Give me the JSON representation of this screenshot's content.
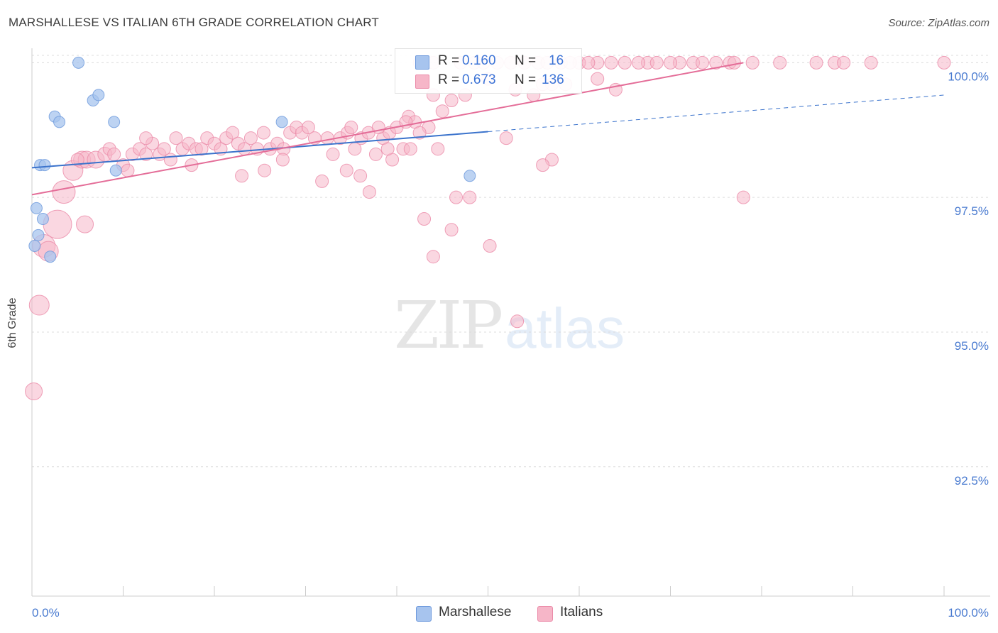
{
  "title": "MARSHALLESE VS ITALIAN 6TH GRADE CORRELATION CHART",
  "source": "Source: ZipAtlas.com",
  "watermark": {
    "zip": "ZIP",
    "atlas": "atlas"
  },
  "legend_top": {
    "rows": [
      {
        "r_label": "R = ",
        "r_value": "0.160",
        "n_label": "N = ",
        "n_value": "16",
        "color": "#a7c4ee"
      },
      {
        "r_label": "R = ",
        "r_value": "0.673",
        "n_label": "N = ",
        "n_value": "136",
        "color": "#f6b6c8"
      }
    ]
  },
  "legend_bottom": [
    {
      "label": "Marshallese",
      "color": "#a7c4ee"
    },
    {
      "label": "Italians",
      "color": "#f6b6c8"
    }
  ],
  "chart_data": {
    "type": "scatter",
    "title": "MARSHALLESE VS ITALIAN 6TH GRADE CORRELATION CHART",
    "xlabel": "",
    "ylabel": "6th Grade",
    "xlim": [
      0,
      100
    ],
    "ylim": [
      90.1,
      100.4
    ],
    "x_tick_labels": [
      "0.0%",
      "100.0%"
    ],
    "y_ticks": [
      92.5,
      95.0,
      97.5,
      100.0
    ],
    "y_tick_labels": [
      "92.5%",
      "95.0%",
      "97.5%",
      "100.0%"
    ],
    "grid": "horizontal dashed",
    "legend_placement": "top-center and bottom",
    "series": [
      {
        "name": "Marshallese",
        "color": "#a7c4ee",
        "stroke": "#6c98dc",
        "trend_color": "#3b73cc",
        "trend": {
          "x0": 0,
          "y0": 98.05,
          "x1": 50,
          "y1": 98.72,
          "dashed_to": 100,
          "dashed_y": 99.4
        },
        "points": [
          [
            0.3,
            96.6,
            8
          ],
          [
            0.5,
            97.3,
            8
          ],
          [
            0.7,
            96.8,
            8
          ],
          [
            0.9,
            98.1,
            8
          ],
          [
            1.2,
            97.1,
            8
          ],
          [
            1.4,
            98.1,
            8
          ],
          [
            2.0,
            96.4,
            8
          ],
          [
            2.5,
            99.0,
            8
          ],
          [
            3.0,
            98.9,
            8
          ],
          [
            5.1,
            100.0,
            8
          ],
          [
            6.7,
            99.3,
            8
          ],
          [
            7.3,
            99.4,
            8
          ],
          [
            9.0,
            98.9,
            8
          ],
          [
            9.2,
            98.0,
            8
          ],
          [
            27.4,
            98.9,
            8
          ],
          [
            48.0,
            97.9,
            8
          ]
        ]
      },
      {
        "name": "Italians",
        "color": "#f6b6c8",
        "stroke": "#eb8aa8",
        "trend_color": "#e46d98",
        "trend": {
          "x0": 0,
          "y0": 97.55,
          "x1": 78,
          "y1": 100.0
        },
        "points": [
          [
            0.2,
            93.9,
            12
          ],
          [
            0.8,
            95.5,
            14
          ],
          [
            1.3,
            96.6,
            16
          ],
          [
            1.8,
            96.5,
            14
          ],
          [
            2.8,
            97.0,
            20
          ],
          [
            3.5,
            97.6,
            16
          ],
          [
            4.5,
            98.0,
            14
          ],
          [
            5.5,
            98.2,
            12
          ],
          [
            6.0,
            98.2,
            12
          ],
          [
            7.0,
            98.2,
            12
          ],
          [
            8.0,
            98.3,
            10
          ],
          [
            8.5,
            98.4,
            9
          ],
          [
            9.0,
            98.3,
            9
          ],
          [
            10.0,
            98.1,
            9
          ],
          [
            10.5,
            98.0,
            9
          ],
          [
            11.0,
            98.3,
            9
          ],
          [
            11.8,
            98.4,
            9
          ],
          [
            12.5,
            98.3,
            9
          ],
          [
            13.2,
            98.5,
            9
          ],
          [
            14.0,
            98.3,
            9
          ],
          [
            14.5,
            98.4,
            9
          ],
          [
            15.2,
            98.2,
            9
          ],
          [
            15.8,
            98.6,
            9
          ],
          [
            16.5,
            98.4,
            9
          ],
          [
            17.2,
            98.5,
            9
          ],
          [
            18.0,
            98.4,
            9
          ],
          [
            18.6,
            98.4,
            9
          ],
          [
            19.2,
            98.6,
            9
          ],
          [
            20.0,
            98.5,
            9
          ],
          [
            20.7,
            98.4,
            9
          ],
          [
            21.3,
            98.6,
            9
          ],
          [
            22.0,
            98.7,
            9
          ],
          [
            22.6,
            98.5,
            9
          ],
          [
            23.3,
            98.4,
            9
          ],
          [
            24.0,
            98.6,
            9
          ],
          [
            24.7,
            98.4,
            9
          ],
          [
            25.4,
            98.7,
            9
          ],
          [
            26.1,
            98.4,
            9
          ],
          [
            26.9,
            98.5,
            9
          ],
          [
            27.6,
            98.4,
            9
          ],
          [
            28.3,
            98.7,
            9
          ],
          [
            29.0,
            98.8,
            9
          ],
          [
            29.6,
            98.7,
            9
          ],
          [
            30.3,
            98.8,
            9
          ],
          [
            31.0,
            98.6,
            9
          ],
          [
            32.4,
            98.6,
            9
          ],
          [
            33.0,
            98.3,
            9
          ],
          [
            33.8,
            98.6,
            9
          ],
          [
            34.6,
            98.7,
            9
          ],
          [
            35.4,
            98.4,
            9
          ],
          [
            36.1,
            98.6,
            9
          ],
          [
            36.9,
            98.7,
            9
          ],
          [
            37.7,
            98.3,
            9
          ],
          [
            38.5,
            98.6,
            9
          ],
          [
            39.2,
            98.7,
            9
          ],
          [
            40.0,
            98.8,
            9
          ],
          [
            40.7,
            98.4,
            9
          ],
          [
            5.8,
            97.0,
            12
          ],
          [
            5.0,
            98.2,
            9
          ],
          [
            17.5,
            98.1,
            9
          ],
          [
            23.0,
            97.9,
            9
          ],
          [
            25.5,
            98.0,
            9
          ],
          [
            27.5,
            98.2,
            9
          ],
          [
            31.8,
            97.8,
            9
          ],
          [
            34.5,
            98.0,
            9
          ],
          [
            36.0,
            97.9,
            9
          ],
          [
            37.0,
            97.6,
            9
          ],
          [
            39.5,
            98.2,
            9
          ],
          [
            41.3,
            99.0,
            9
          ],
          [
            42.0,
            98.9,
            9
          ],
          [
            43.0,
            97.1,
            9
          ],
          [
            43.5,
            98.8,
            9
          ],
          [
            44.5,
            98.4,
            9
          ],
          [
            45.0,
            99.1,
            9
          ],
          [
            46.0,
            99.3,
            9
          ],
          [
            46.5,
            97.5,
            9
          ],
          [
            47.5,
            99.4,
            9
          ],
          [
            52.0,
            98.6,
            9
          ],
          [
            55.0,
            99.4,
            9
          ],
          [
            57.0,
            99.6,
            9
          ],
          [
            58.0,
            100.0,
            9
          ],
          [
            60.0,
            100.0,
            9
          ],
          [
            62.0,
            100.0,
            9
          ],
          [
            65.0,
            100.0,
            9
          ],
          [
            67.5,
            100.0,
            9
          ],
          [
            71.0,
            100.0,
            9
          ],
          [
            72.5,
            100.0,
            9
          ],
          [
            75.0,
            100.0,
            9
          ],
          [
            76.5,
            100.0,
            9
          ],
          [
            77.0,
            100.0,
            9
          ],
          [
            79.0,
            100.0,
            9
          ],
          [
            82.0,
            100.0,
            9
          ],
          [
            86.0,
            100.0,
            9
          ],
          [
            88.0,
            100.0,
            9
          ],
          [
            89.0,
            100.0,
            9
          ],
          [
            92.0,
            100.0,
            9
          ],
          [
            100.0,
            100.0,
            9
          ],
          [
            42.5,
            100.0,
            9
          ],
          [
            44.0,
            100.0,
            9
          ],
          [
            47.0,
            100.0,
            9
          ],
          [
            48.5,
            100.0,
            9
          ],
          [
            49.5,
            100.0,
            9
          ],
          [
            51.0,
            100.0,
            9
          ],
          [
            52.5,
            100.0,
            9
          ],
          [
            54.0,
            100.0,
            9
          ],
          [
            55.5,
            100.0,
            9
          ],
          [
            56.5,
            100.0,
            9
          ],
          [
            59.0,
            100.0,
            9
          ],
          [
            61.0,
            100.0,
            9
          ],
          [
            63.5,
            100.0,
            9
          ],
          [
            66.5,
            100.0,
            9
          ],
          [
            68.5,
            100.0,
            9
          ],
          [
            70.0,
            100.0,
            9
          ],
          [
            73.5,
            100.0,
            9
          ],
          [
            50.0,
            99.7,
            9
          ],
          [
            53.0,
            99.5,
            9
          ],
          [
            56.0,
            99.6,
            9
          ],
          [
            58.5,
            99.6,
            9
          ],
          [
            62.0,
            99.7,
            9
          ],
          [
            35.0,
            98.8,
            9
          ],
          [
            38.0,
            98.8,
            9
          ],
          [
            41.0,
            98.9,
            9
          ],
          [
            39.0,
            98.4,
            9
          ],
          [
            41.5,
            98.4,
            9
          ],
          [
            42.5,
            98.7,
            9
          ],
          [
            44.0,
            99.4,
            9
          ],
          [
            44.0,
            96.4,
            9
          ],
          [
            46.0,
            96.9,
            9
          ],
          [
            48.0,
            97.5,
            9
          ],
          [
            50.2,
            96.6,
            9
          ],
          [
            53.2,
            95.2,
            9
          ],
          [
            57.0,
            98.2,
            9
          ],
          [
            64.0,
            99.5,
            9
          ],
          [
            78.0,
            97.5,
            9
          ],
          [
            56.0,
            98.1,
            9
          ],
          [
            12.5,
            98.6,
            9
          ]
        ]
      }
    ]
  }
}
